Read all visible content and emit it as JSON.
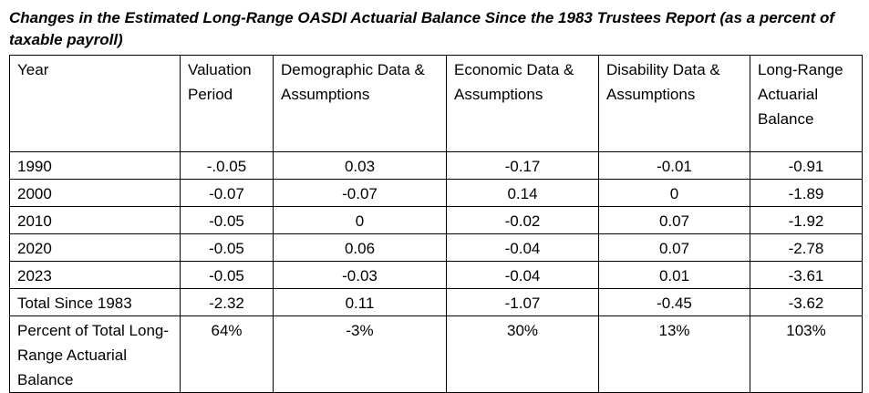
{
  "title": "Changes in the Estimated Long-Range OASDI Actuarial Balance Since the 1983 Trustees Report (as a percent of taxable payroll)",
  "table": {
    "headers": [
      "Year",
      "Valuation Period",
      "Demographic Data & Assumptions",
      "Economic Data & Assumptions",
      "Disability Data & Assumptions",
      "Long-Range Actuarial Balance"
    ],
    "rows": [
      [
        "1990",
        "-.0.05",
        "0.03",
        "-0.17",
        "-0.01",
        "-0.91"
      ],
      [
        "2000",
        "-0.07",
        "-0.07",
        "0.14",
        "0",
        "-1.89"
      ],
      [
        "2010",
        "-0.05",
        "0",
        "-0.02",
        "0.07",
        "-1.92"
      ],
      [
        "2020",
        "-0.05",
        "0.06",
        "-0.04",
        "0.07",
        "-2.78"
      ],
      [
        "2023",
        "-0.05",
        "-0.03",
        "-0.04",
        "0.01",
        "-3.61"
      ],
      [
        "Total Since 1983",
        "-2.32",
        "0.11",
        "-1.07",
        "-0.45",
        "-3.62"
      ],
      [
        "Percent of Total Long-Range Actuarial Balance",
        "64%",
        "-3%",
        "30%",
        "13%",
        "103%"
      ]
    ]
  }
}
